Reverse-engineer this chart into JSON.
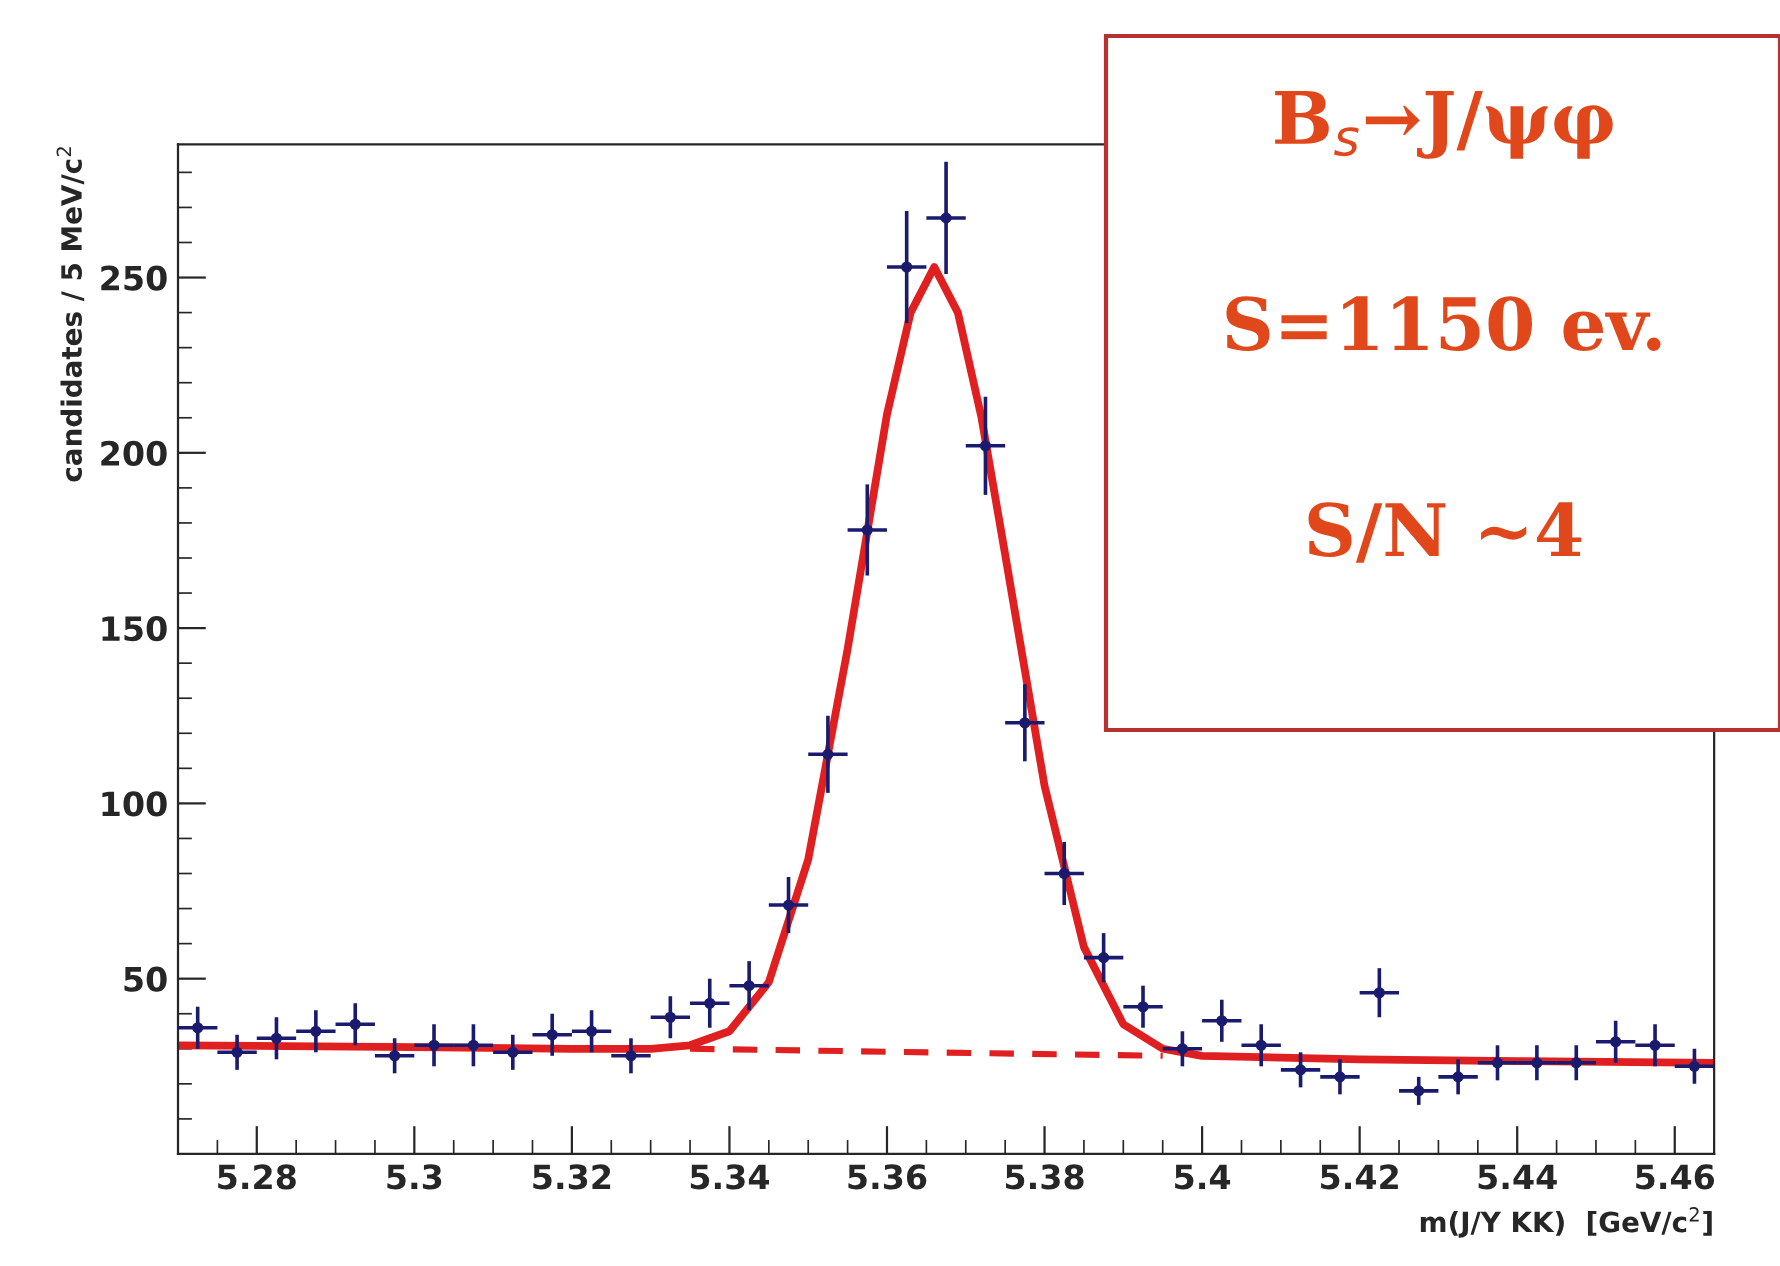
{
  "chart_data": {
    "type": "scatter",
    "xlabel": "m(J/Y KK)  [GeV/c$^{2}$]",
    "ylabel": "candidates / 5 MeV/c$^{2}$",
    "annotations": [
      "B$_{s}$→J/ψφ",
      "S=1150 ev.",
      "S/N ~4"
    ],
    "xlim": [
      5.27,
      5.465
    ],
    "ylim": [
      0,
      288
    ],
    "xticks": [
      5.28,
      5.3,
      5.32,
      5.34,
      5.36,
      5.38,
      5.4,
      5.42,
      5.44,
      5.46
    ],
    "yticks": [
      50,
      100,
      150,
      200,
      250
    ],
    "grid": false,
    "series": [
      {
        "color": "#1a1a6e",
        "marker": "circle",
        "x": [
          5.2725,
          5.2775,
          5.2825,
          5.2875,
          5.2925,
          5.2975,
          5.3025,
          5.3075,
          5.3125,
          5.3175,
          5.3225,
          5.3275,
          5.3325,
          5.3375,
          5.3425,
          5.3475,
          5.3525,
          5.3575,
          5.3625,
          5.3675,
          5.3725,
          5.3775,
          5.3825,
          5.3875,
          5.3925,
          5.3975,
          5.4025,
          5.4075,
          5.4125,
          5.4175,
          5.4225,
          5.4275,
          5.4325,
          5.4375,
          5.4425,
          5.4475,
          5.4525,
          5.4575,
          5.4625
        ],
        "values": [
          36,
          29,
          33,
          35,
          37,
          28,
          31,
          31,
          29,
          34,
          35,
          28,
          39,
          43,
          48,
          71,
          114,
          178,
          253,
          267,
          202,
          123,
          80,
          56,
          42,
          30,
          38,
          31,
          24,
          22,
          46,
          18,
          22,
          26,
          26,
          26,
          32,
          31,
          25
        ],
        "errors": [
          6,
          5,
          6,
          6,
          6,
          5,
          6,
          6,
          5,
          6,
          6,
          5,
          6,
          7,
          7,
          8,
          11,
          13,
          16,
          16,
          14,
          11,
          9,
          7,
          6,
          5,
          6,
          6,
          5,
          5,
          7,
          4,
          5,
          5,
          5,
          5,
          6,
          6,
          5
        ],
        "xerrors": [
          0.0025,
          0.0025,
          0.0025,
          0.0025,
          0.0025,
          0.0025,
          0.0025,
          0.0025,
          0.0025,
          0.0025,
          0.0025,
          0.0025,
          0.0025,
          0.0025,
          0.0025,
          0.0025,
          0.0025,
          0.0025,
          0.0025,
          0.0025,
          0.0025,
          0.0025,
          0.0025,
          0.0025,
          0.0025,
          0.0025,
          0.0025,
          0.0025,
          0.0025,
          0.0025,
          0.0025,
          0.0025,
          0.0025,
          0.0025,
          0.0025,
          0.0025,
          0.0025,
          0.0025,
          0.0025
        ]
      },
      {
        "type": "line",
        "color": "#e02020",
        "line_style": "solid",
        "marker": "none",
        "x": [
          5.27,
          5.3,
          5.32,
          5.33,
          5.335,
          5.34,
          5.345,
          5.35,
          5.355,
          5.36,
          5.363,
          5.366,
          5.369,
          5.372,
          5.375,
          5.38,
          5.385,
          5.39,
          5.395,
          5.4,
          5.42,
          5.44,
          5.465
        ],
        "values": [
          31,
          30.5,
          30,
          30,
          31,
          35,
          49,
          84,
          144,
          211,
          240,
          253,
          240,
          210,
          171,
          105,
          59,
          37,
          30,
          28,
          27,
          26.5,
          26
        ]
      },
      {
        "type": "line",
        "color": "#e02020",
        "line_style": "dashed",
        "marker": "none",
        "x": [
          5.335,
          5.395
        ],
        "values": [
          30,
          28
        ]
      }
    ]
  }
}
